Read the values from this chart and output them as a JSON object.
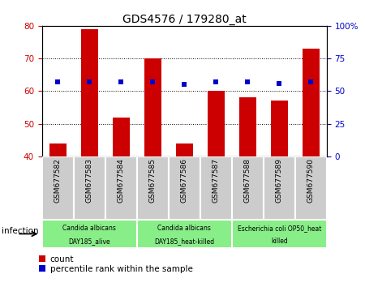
{
  "title": "GDS4576 / 179280_at",
  "samples": [
    "GSM677582",
    "GSM677583",
    "GSM677584",
    "GSM677585",
    "GSM677586",
    "GSM677587",
    "GSM677588",
    "GSM677589",
    "GSM677590"
  ],
  "count_values": [
    44,
    79,
    52,
    70,
    44,
    60,
    58,
    57,
    73
  ],
  "percentile_values": [
    57,
    57,
    57,
    57,
    55,
    57,
    57,
    56,
    57
  ],
  "count_color": "#cc0000",
  "percentile_color": "#0000cc",
  "ylim_left": [
    40,
    80
  ],
  "ylim_right": [
    0,
    100
  ],
  "yticks_left": [
    40,
    50,
    60,
    70,
    80
  ],
  "yticks_right": [
    0,
    25,
    50,
    75,
    100
  ],
  "yticklabels_right": [
    "0",
    "25",
    "50",
    "75",
    "100%"
  ],
  "groups": [
    {
      "label": "Candida albicans\nDAY185_alive",
      "start": 0,
      "end": 3
    },
    {
      "label": "Candida albicans\nDAY185_heat-killed",
      "start": 3,
      "end": 6
    },
    {
      "label": "Escherichia coli OP50_heat\nkilled",
      "start": 6,
      "end": 9
    }
  ],
  "factor_label": "infection",
  "legend_count": "count",
  "legend_pct": "percentile rank within the sample",
  "bar_bottom": 40,
  "tick_area_color": "#cccccc",
  "group_color": "#88ee88",
  "grid_color": "#000000"
}
